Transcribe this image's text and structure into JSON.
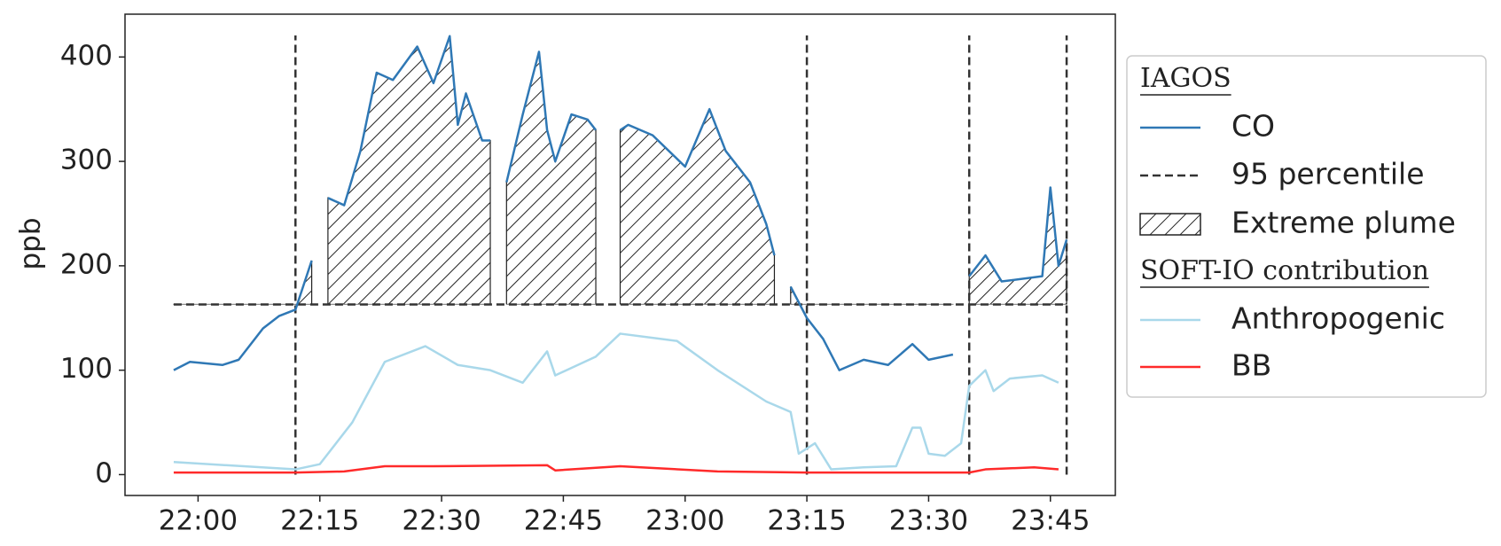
{
  "chart_data": {
    "type": "line",
    "y_label": "ppb",
    "ylim": [
      -20,
      441
    ],
    "yticks": [
      0,
      100,
      200,
      300,
      400
    ],
    "xlim": [
      "21:51",
      "23:53"
    ],
    "xticks": [
      "22:00",
      "22:15",
      "22:30",
      "22:45",
      "23:00",
      "23:15",
      "23:30",
      "23:45"
    ],
    "legend_headings": [
      "IAGOS",
      "SOFT-IO contribution"
    ],
    "threshold_label": "95 percentile",
    "threshold": 163,
    "threshold_range": [
      "21:57",
      "23:47"
    ],
    "event_bounds": [
      "22:12",
      "23:15",
      "23:35",
      "23:47"
    ],
    "plume_label": "Extreme plume",
    "series": [
      {
        "name": "CO",
        "color": "#2f78b5",
        "x": [
          "21:57",
          "21:59",
          "22:03",
          "22:05",
          "22:08",
          "22:10",
          "22:12",
          "22:14",
          "22:15",
          "22:16",
          "22:18",
          "22:20",
          "22:22",
          "22:24",
          "22:27",
          "22:29",
          "22:31",
          "22:32",
          "22:33",
          "22:35",
          "22:36",
          "22:37",
          "22:38",
          "22:40",
          "22:42",
          "22:43",
          "22:44",
          "22:46",
          "22:48",
          "22:49",
          "22:51",
          "22:52",
          "22:53",
          "22:56",
          "22:58",
          "23:00",
          "23:03",
          "23:05",
          "23:08",
          "23:10",
          "23:11",
          "23:12",
          "23:13",
          "23:15",
          "23:17",
          "23:19",
          "23:22",
          "23:25",
          "23:28",
          "23:30",
          "23:33",
          "23:34",
          "23:35",
          "23:37",
          "23:39",
          "23:44",
          "23:45",
          "23:46",
          "23:47"
        ],
        "values": [
          100,
          108,
          105,
          110,
          140,
          152,
          158,
          205,
          null,
          265,
          258,
          310,
          385,
          378,
          410,
          375,
          420,
          335,
          365,
          320,
          320,
          null,
          280,
          345,
          405,
          330,
          300,
          345,
          340,
          330,
          null,
          330,
          335,
          325,
          310,
          295,
          350,
          310,
          280,
          240,
          210,
          null,
          180,
          150,
          130,
          100,
          110,
          105,
          125,
          110,
          115,
          null,
          190,
          210,
          185,
          190,
          275,
          200,
          225
        ]
      },
      {
        "name": "Anthropogenic",
        "color": "#a9d8ea",
        "x": [
          "21:57",
          "22:12",
          "22:15",
          "22:19",
          "22:23",
          "22:28",
          "22:32",
          "22:36",
          "22:40",
          "22:43",
          "22:44",
          "22:49",
          "22:52",
          "22:59",
          "23:04",
          "23:10",
          "23:13",
          "23:14",
          "23:16",
          "23:18",
          "23:22",
          "23:26",
          "23:28",
          "23:29",
          "23:30",
          "23:32",
          "23:34",
          "23:35",
          "23:37",
          "23:38",
          "23:40",
          "23:44",
          "23:46"
        ],
        "values": [
          12,
          5,
          10,
          50,
          108,
          123,
          105,
          100,
          88,
          118,
          95,
          113,
          135,
          128,
          100,
          70,
          60,
          20,
          30,
          5,
          7,
          8,
          45,
          45,
          20,
          18,
          30,
          85,
          100,
          80,
          92,
          95,
          88
        ]
      },
      {
        "name": "BB",
        "color": "#ff2a2a",
        "x": [
          "21:57",
          "22:12",
          "22:18",
          "22:23",
          "22:29",
          "22:43",
          "22:44",
          "22:52",
          "23:04",
          "23:15",
          "23:28",
          "23:35",
          "23:37",
          "23:43",
          "23:46"
        ],
        "values": [
          2,
          2,
          3,
          8,
          8,
          9,
          4,
          8,
          3,
          2,
          2,
          2,
          5,
          7,
          5
        ]
      }
    ]
  }
}
